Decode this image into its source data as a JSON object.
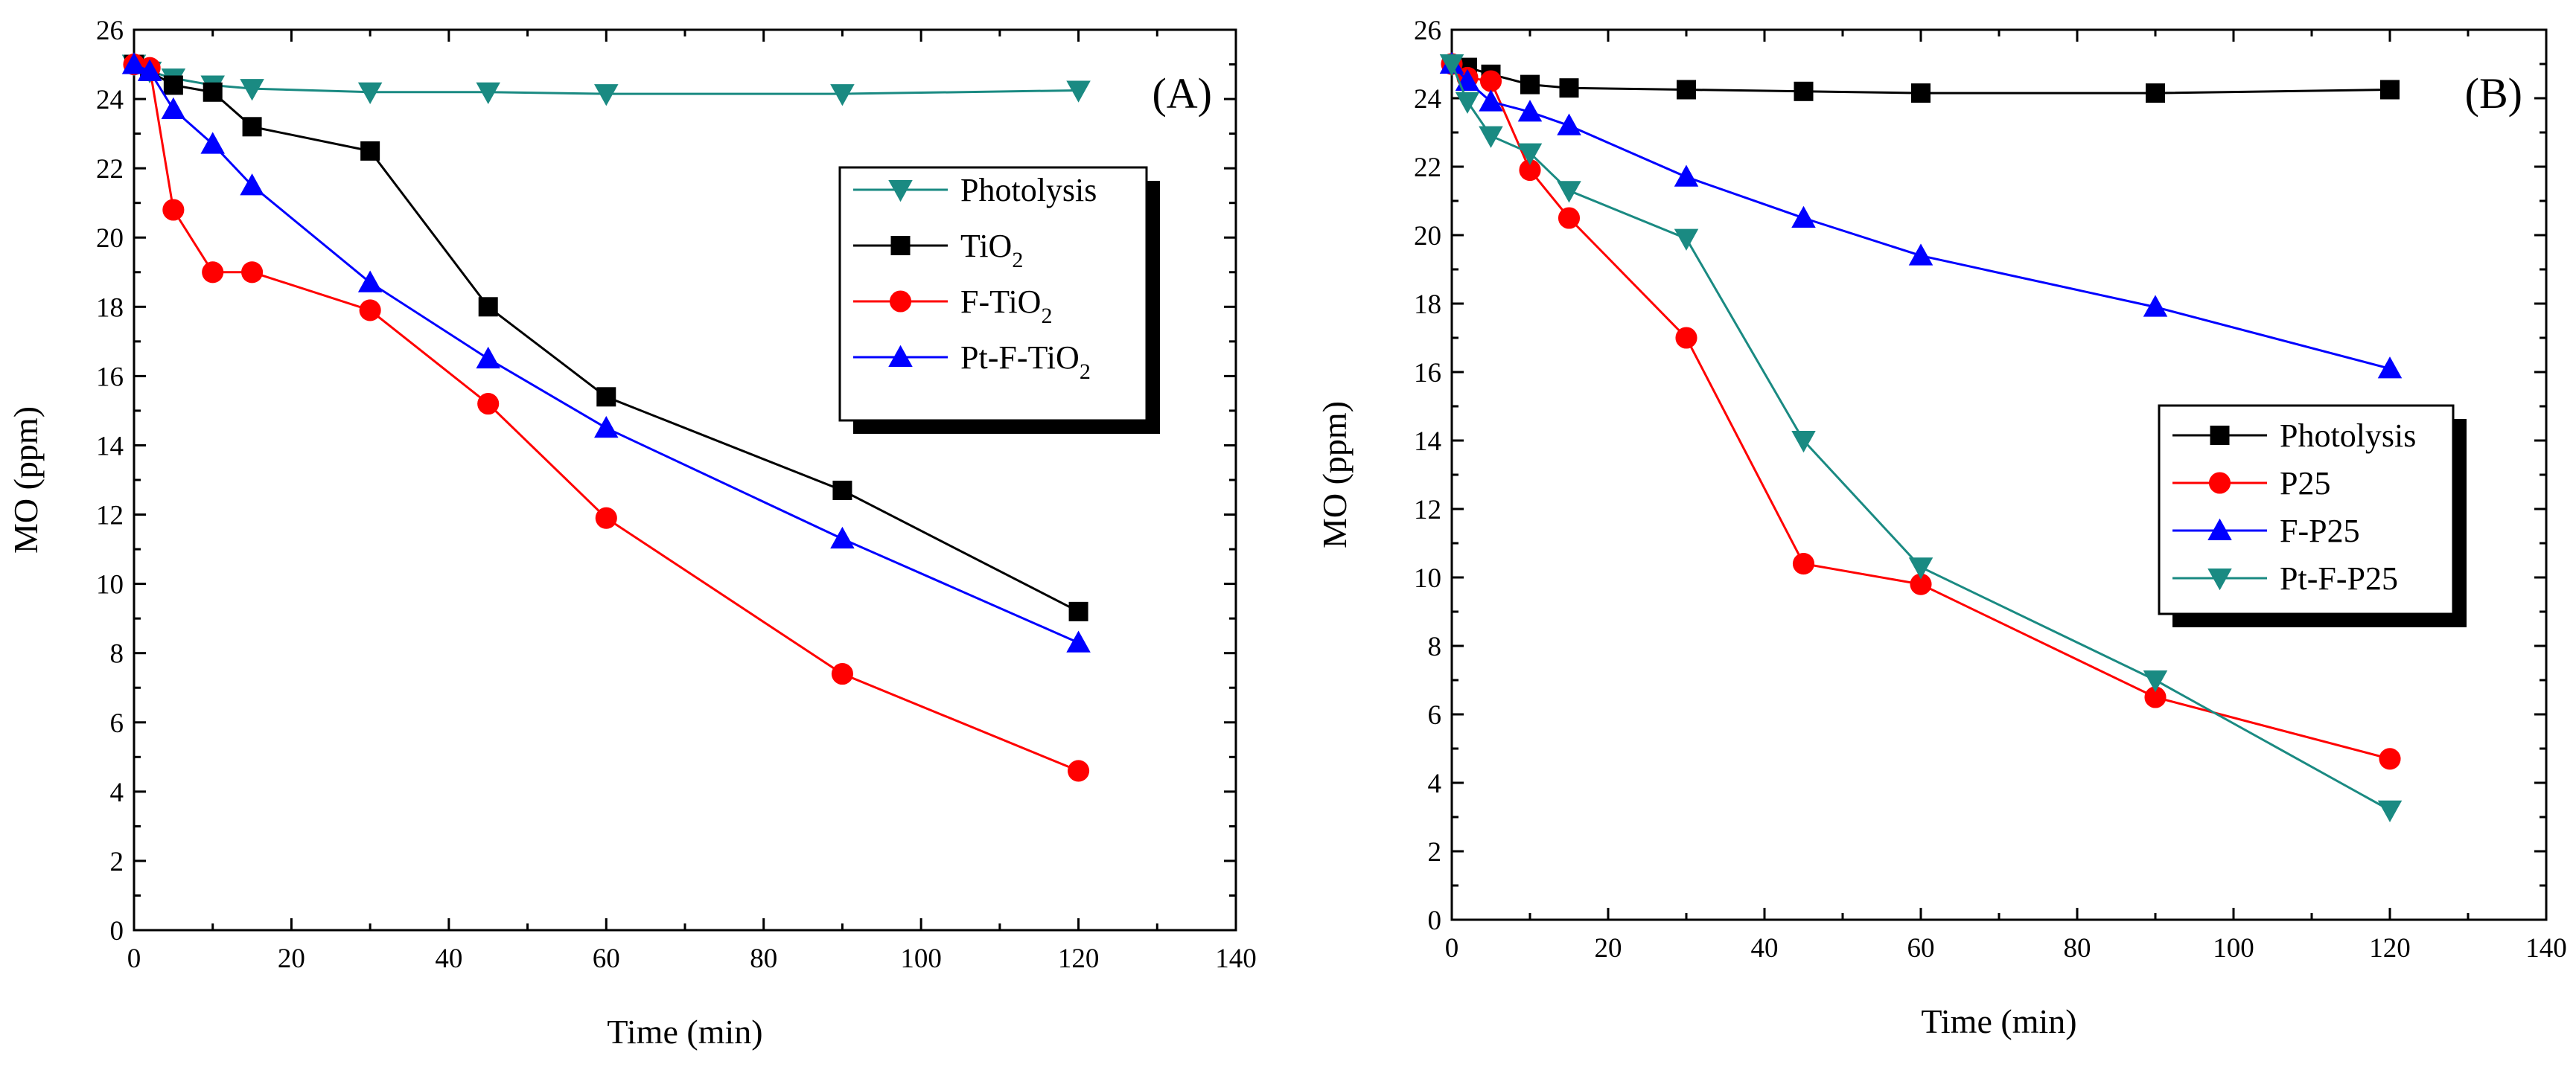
{
  "chart_data": [
    {
      "type": "line",
      "panel_label": "(A)",
      "xlabel": "Time (min)",
      "ylabel": "MO (ppm)",
      "xlim": [
        0,
        140
      ],
      "ylim": [
        0,
        26
      ],
      "xticks": [
        0,
        20,
        40,
        60,
        80,
        100,
        120,
        140
      ],
      "yticks": [
        0,
        2,
        4,
        6,
        8,
        10,
        12,
        14,
        16,
        18,
        20,
        22,
        24,
        26
      ],
      "grid": false,
      "legend_position": "upper-right",
      "series": [
        {
          "name": "Photolysis",
          "legend_base": "Photolysis",
          "legend_sub": "",
          "color": "#1a8a82",
          "marker": "triangle-down",
          "x": [
            0,
            2,
            5,
            10,
            15,
            30,
            45,
            60,
            90,
            120
          ],
          "y": [
            25.0,
            24.8,
            24.6,
            24.4,
            24.3,
            24.2,
            24.2,
            24.15,
            24.15,
            24.25
          ]
        },
        {
          "name": "TiO2",
          "legend_base": "TiO",
          "legend_sub": "2",
          "color": "#000000",
          "marker": "square",
          "x": [
            0,
            2,
            5,
            10,
            15,
            30,
            45,
            60,
            90,
            120
          ],
          "y": [
            25.0,
            24.8,
            24.4,
            24.2,
            23.2,
            22.5,
            18.0,
            15.4,
            12.7,
            9.2
          ]
        },
        {
          "name": "F-TiO2",
          "legend_base": "F-TiO",
          "legend_sub": "2",
          "color": "#ff0000",
          "marker": "circle",
          "x": [
            0,
            2,
            5,
            10,
            15,
            30,
            45,
            60,
            90,
            120
          ],
          "y": [
            25.0,
            24.9,
            20.8,
            19.0,
            19.0,
            17.9,
            15.2,
            11.9,
            7.4,
            4.6
          ]
        },
        {
          "name": "Pt-F-TiO2",
          "legend_base": "Pt-F-TiO",
          "legend_sub": "2",
          "color": "#0000ff",
          "marker": "triangle-up",
          "x": [
            0,
            2,
            5,
            10,
            15,
            30,
            45,
            60,
            90,
            120
          ],
          "y": [
            25.0,
            24.8,
            23.7,
            22.7,
            21.5,
            18.7,
            16.5,
            14.5,
            11.3,
            8.3
          ]
        }
      ]
    },
    {
      "type": "line",
      "panel_label": "(B)",
      "xlabel": "Time (min)",
      "ylabel": "MO (ppm)",
      "xlim": [
        0,
        140
      ],
      "ylim": [
        0,
        26
      ],
      "xticks": [
        0,
        20,
        40,
        60,
        80,
        100,
        120,
        140
      ],
      "yticks": [
        0,
        2,
        4,
        6,
        8,
        10,
        12,
        14,
        16,
        18,
        20,
        22,
        24,
        26
      ],
      "grid": false,
      "legend_position": "center-right",
      "series": [
        {
          "name": "Photolysis",
          "legend_base": "Photolysis",
          "legend_sub": "",
          "color": "#000000",
          "marker": "square",
          "x": [
            0,
            2,
            5,
            10,
            15,
            30,
            45,
            60,
            90,
            120
          ],
          "y": [
            25.0,
            24.9,
            24.7,
            24.4,
            24.3,
            24.25,
            24.2,
            24.15,
            24.15,
            24.25
          ]
        },
        {
          "name": "P25",
          "legend_base": "P25",
          "legend_sub": "",
          "color": "#ff0000",
          "marker": "circle",
          "x": [
            0,
            2,
            5,
            10,
            15,
            30,
            45,
            60,
            90,
            120
          ],
          "y": [
            25.0,
            24.6,
            24.5,
            21.9,
            20.5,
            17.0,
            10.4,
            9.8,
            6.5,
            4.7
          ]
        },
        {
          "name": "F-P25",
          "legend_base": "F-P25",
          "legend_sub": "",
          "color": "#0000ff",
          "marker": "triangle-up",
          "x": [
            0,
            2,
            5,
            10,
            15,
            30,
            45,
            60,
            90,
            120
          ],
          "y": [
            25.0,
            24.5,
            23.9,
            23.6,
            23.2,
            21.7,
            20.5,
            19.4,
            17.9,
            16.1
          ]
        },
        {
          "name": "Pt-F-P25",
          "legend_base": "Pt-F-P25",
          "legend_sub": "",
          "color": "#1a8a82",
          "marker": "triangle-down",
          "x": [
            0,
            2,
            5,
            10,
            15,
            30,
            45,
            60,
            90,
            120
          ],
          "y": [
            25.0,
            23.9,
            22.9,
            22.4,
            21.3,
            19.9,
            14.0,
            10.3,
            7.0,
            3.2
          ]
        }
      ]
    }
  ]
}
